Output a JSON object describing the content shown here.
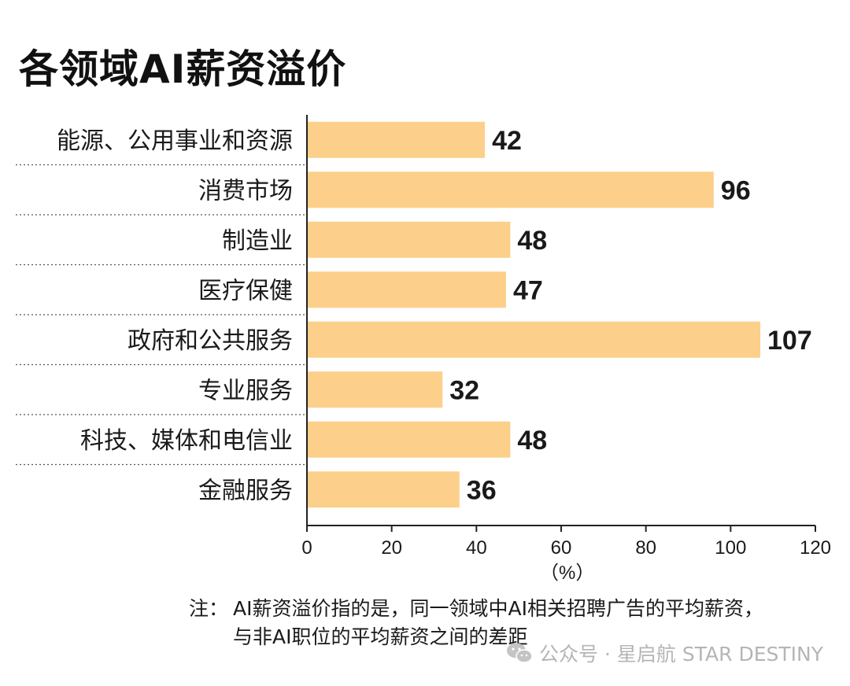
{
  "title": "各领域AI薪资溢价",
  "chart_data": {
    "type": "bar",
    "orientation": "horizontal",
    "title": "各领域AI薪资溢价",
    "categories": [
      "能源、公用事业和资源",
      "消费市场",
      "制造业",
      "医疗保健",
      "政府和公共服务",
      "专业服务",
      "科技、媒体和电信业",
      "金融服务"
    ],
    "values": [
      42,
      96,
      48,
      47,
      107,
      32,
      48,
      36
    ],
    "xlim": [
      0,
      120
    ],
    "xticks": [
      0,
      20,
      40,
      60,
      80,
      100,
      120
    ],
    "xlabel": "（%）",
    "grid": false,
    "bar_color": "#fcd08a",
    "data_labels": true
  },
  "note": {
    "prefix": "注：",
    "line1": "AI薪资溢价指的是，同一领域中AI相关招聘广告的平均薪资，",
    "line2": "与非AI职位的平均薪资之间的差距"
  },
  "watermark": {
    "icon": "wechat-icon",
    "text": "公众号 · 星启航 STAR DESTINY"
  }
}
